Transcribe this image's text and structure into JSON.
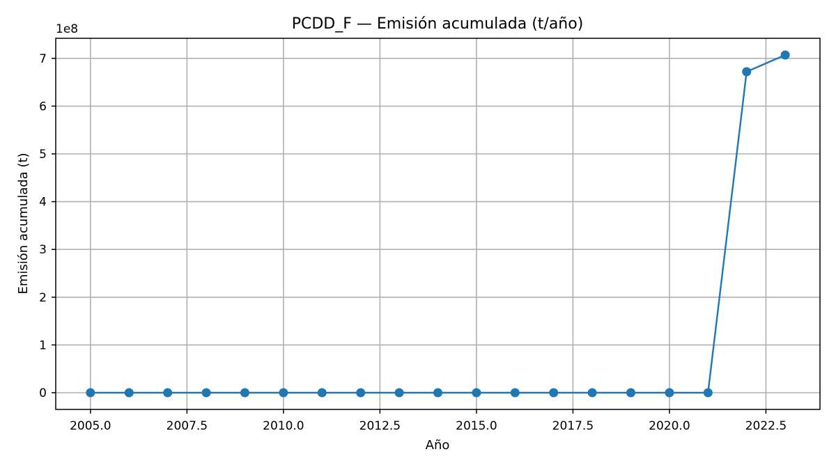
{
  "chart_data": {
    "type": "line",
    "title": "PCDD_F — Emisión acumulada (t/año)",
    "xlabel": "Año",
    "ylabel": "Emisión acumulada (t)",
    "y_offset_label": "1e8",
    "grid": true,
    "xlim": [
      2004.1,
      2023.9
    ],
    "ylim": [
      -35000000,
      742000000
    ],
    "x_ticks": [
      2005.0,
      2007.5,
      2010.0,
      2012.5,
      2015.0,
      2017.5,
      2020.0,
      2022.5
    ],
    "x_tick_labels": [
      "2005.0",
      "2007.5",
      "2010.0",
      "2012.5",
      "2015.0",
      "2017.5",
      "2020.0",
      "2022.5"
    ],
    "y_ticks": [
      0,
      100000000,
      200000000,
      300000000,
      400000000,
      500000000,
      600000000,
      700000000
    ],
    "y_tick_labels": [
      "0",
      "1",
      "2",
      "3",
      "4",
      "5",
      "6",
      "7"
    ],
    "color": "#1f77b4",
    "series": [
      {
        "x": [
          2005,
          2006,
          2007,
          2008,
          2009,
          2010,
          2011,
          2012,
          2013,
          2014,
          2015,
          2016,
          2017,
          2018,
          2019,
          2020,
          2021,
          2022,
          2023
        ],
        "y": [
          0,
          0,
          0,
          0,
          0,
          0,
          0,
          0,
          0,
          0,
          0,
          0,
          0,
          0,
          0,
          0,
          0,
          672000000,
          707000000
        ]
      }
    ]
  }
}
